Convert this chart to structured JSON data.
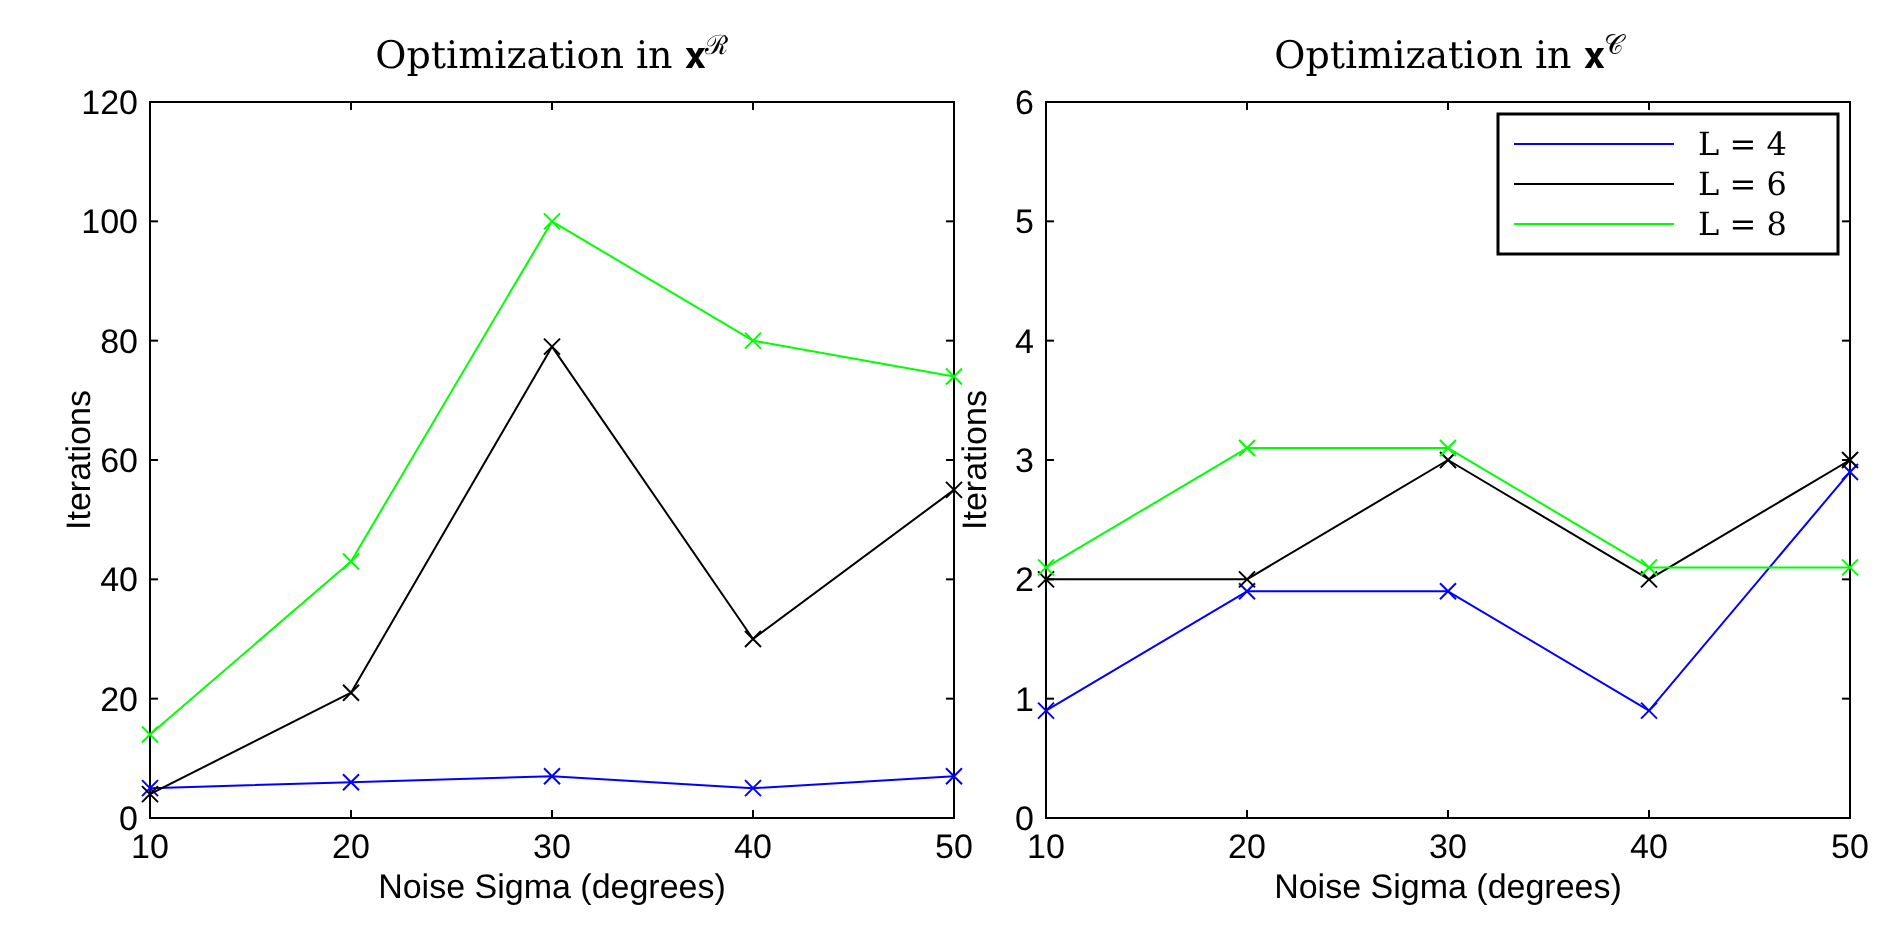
{
  "chart_data": [
    {
      "type": "line",
      "title": "Optimization in 𝐱$^{ℛ}$",
      "xlabel": "Noise Sigma (degrees)",
      "ylabel": "Iterations",
      "x": [
        10,
        20,
        30,
        40,
        50
      ],
      "xlim": [
        10,
        50
      ],
      "xticks": [
        10,
        20,
        30,
        40,
        50
      ],
      "ylim": [
        0,
        120
      ],
      "yticks": [
        0,
        20,
        40,
        60,
        80,
        100,
        120
      ],
      "marker": "cross",
      "legend": false,
      "grid": false,
      "series": [
        {
          "color": "#0000ff",
          "values": [
            5,
            6,
            7,
            5,
            7
          ]
        },
        {
          "color": "#000000",
          "values": [
            4,
            21,
            79,
            30,
            55
          ]
        },
        {
          "color": "#00ff00",
          "values": [
            14,
            43,
            100,
            80,
            74
          ]
        }
      ]
    },
    {
      "type": "line",
      "title": "Optimization in 𝐱$^{𝒞}$",
      "xlabel": "Noise Sigma (degrees)",
      "ylabel": "Iterations",
      "x": [
        10,
        20,
        30,
        40,
        50
      ],
      "xlim": [
        10,
        50
      ],
      "xticks": [
        10,
        20,
        30,
        40,
        50
      ],
      "ylim": [
        0,
        6
      ],
      "yticks": [
        0,
        1,
        2,
        3,
        4,
        5,
        6
      ],
      "marker": "cross",
      "legend": "top right",
      "grid": false,
      "series": [
        {
          "name": "L = 4",
          "color": "#0000ff",
          "values": [
            0.9,
            1.9,
            1.9,
            0.9,
            2.9
          ]
        },
        {
          "name": "L = 6",
          "color": "#000000",
          "values": [
            2,
            2,
            3,
            2,
            3
          ]
        },
        {
          "name": "L = 8",
          "color": "#00ff00",
          "values": [
            2.1,
            3.1,
            3.1,
            2.1,
            2.1
          ]
        }
      ]
    }
  ]
}
